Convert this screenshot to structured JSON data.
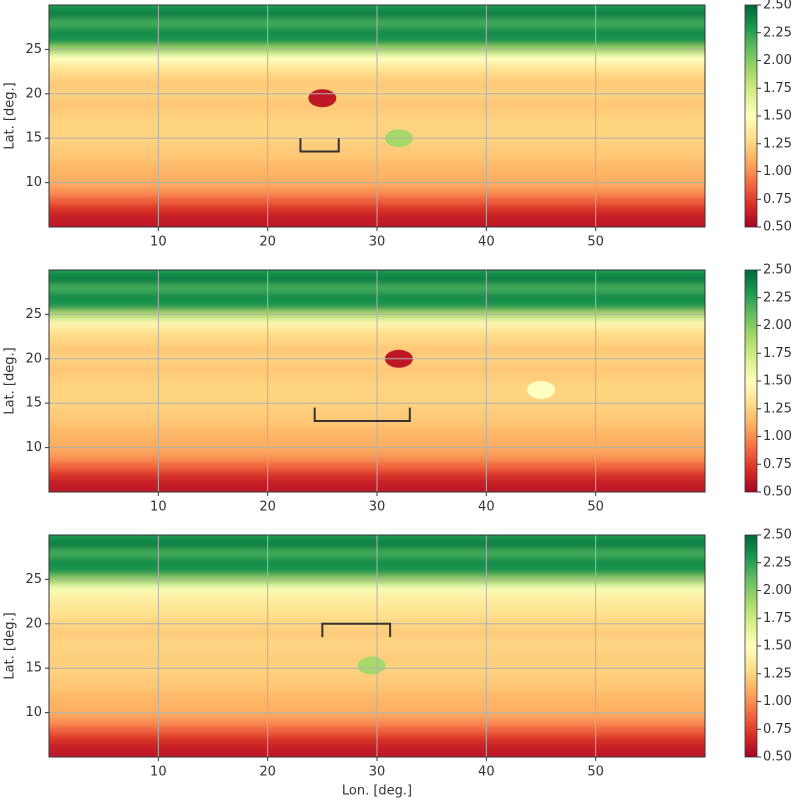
{
  "chart_data": [
    {
      "type": "heatmap",
      "ylabel": "Lat. [deg.]",
      "xlim": [
        0,
        60
      ],
      "ylim": [
        5,
        30
      ],
      "xticks": [
        10,
        20,
        30,
        40,
        50
      ],
      "yticks": [
        10,
        15,
        20,
        25
      ],
      "grid": true,
      "colormap": [
        "#a50026",
        "#d73027",
        "#f46d43",
        "#fdae61",
        "#fee08b",
        "#ffffbf",
        "#d9ef8b",
        "#a6d96a",
        "#66bd63",
        "#1a9850",
        "#006837"
      ],
      "clim": [
        0.5,
        2.5
      ],
      "cticks": [
        {
          "value": 0.5,
          "label": "0.50"
        },
        {
          "value": 0.75,
          "label": "0.75"
        },
        {
          "value": 1,
          "label": "1.00"
        },
        {
          "value": 1.25,
          "label": "1.25"
        },
        {
          "value": 1.5,
          "label": "1.50"
        },
        {
          "value": 1.75,
          "label": "1.75"
        },
        {
          "value": 2,
          "label": "2.00"
        },
        {
          "value": 2.25,
          "label": "2.25"
        },
        {
          "value": 2.5,
          "label": "2.50"
        }
      ],
      "lat": [
        5,
        6,
        7,
        8,
        9,
        10,
        11,
        12,
        13,
        14,
        15,
        16,
        17,
        18,
        19,
        20,
        21,
        22,
        23,
        24,
        25,
        26,
        27,
        28,
        29,
        30
      ],
      "values": [
        0.6,
        0.62,
        0.7,
        0.85,
        1.0,
        1.1,
        1.12,
        1.15,
        1.2,
        1.22,
        1.25,
        1.25,
        1.25,
        1.22,
        1.2,
        1.25,
        1.2,
        1.25,
        1.35,
        1.5,
        1.9,
        2.3,
        2.35,
        2.2,
        2.4,
        2.3
      ],
      "features": {
        "lon": [
          25,
          32
        ],
        "lat": [
          19.5,
          15
        ],
        "values": [
          0.6,
          1.9
        ]
      },
      "bracket": {
        "x": [
          23,
          26.5
        ],
        "y": [
          13.5,
          15
        ]
      }
    },
    {
      "type": "heatmap",
      "ylabel": "Lat. [deg.]",
      "xlim": [
        0,
        60
      ],
      "ylim": [
        5,
        30
      ],
      "xticks": [
        10,
        20,
        30,
        40,
        50
      ],
      "yticks": [
        10,
        15,
        20,
        25
      ],
      "grid": true,
      "colormap": [
        "#a50026",
        "#d73027",
        "#f46d43",
        "#fdae61",
        "#fee08b",
        "#ffffbf",
        "#d9ef8b",
        "#a6d96a",
        "#66bd63",
        "#1a9850",
        "#006837"
      ],
      "clim": [
        0.5,
        2.5
      ],
      "cticks": [
        {
          "value": 0.5,
          "label": "0.50"
        },
        {
          "value": 0.75,
          "label": "0.75"
        },
        {
          "value": 1,
          "label": "1.00"
        },
        {
          "value": 1.25,
          "label": "1.25"
        },
        {
          "value": 1.5,
          "label": "1.50"
        },
        {
          "value": 1.75,
          "label": "1.75"
        },
        {
          "value": 2,
          "label": "2.00"
        },
        {
          "value": 2.25,
          "label": "2.25"
        },
        {
          "value": 2.5,
          "label": "2.50"
        }
      ],
      "lat": [
        5,
        6,
        7,
        8,
        9,
        10,
        11,
        12,
        13,
        14,
        15,
        16,
        17,
        18,
        19,
        20,
        21,
        22,
        23,
        24,
        25,
        26,
        27,
        28,
        29,
        30
      ],
      "values": [
        0.6,
        0.62,
        0.72,
        0.88,
        1.02,
        1.1,
        1.12,
        1.15,
        1.2,
        1.22,
        1.25,
        1.25,
        1.25,
        1.22,
        1.2,
        1.25,
        1.2,
        1.25,
        1.3,
        1.45,
        1.85,
        2.3,
        2.35,
        2.2,
        2.4,
        2.3
      ],
      "features": {
        "lon": [
          32,
          45
        ],
        "lat": [
          20,
          16.5
        ],
        "values": [
          0.6,
          1.5
        ]
      },
      "bracket": {
        "x": [
          24.3,
          33
        ],
        "y": [
          13,
          14.5
        ]
      }
    },
    {
      "type": "heatmap",
      "ylabel": "Lat. [deg.]",
      "xlabel": "Lon. [deg.]",
      "xlim": [
        0,
        60
      ],
      "ylim": [
        5,
        30
      ],
      "xticks": [
        10,
        20,
        30,
        40,
        50
      ],
      "yticks": [
        10,
        15,
        20,
        25
      ],
      "grid": true,
      "colormap": [
        "#a50026",
        "#d73027",
        "#f46d43",
        "#fdae61",
        "#fee08b",
        "#ffffbf",
        "#d9ef8b",
        "#a6d96a",
        "#66bd63",
        "#1a9850",
        "#006837"
      ],
      "clim": [
        0.5,
        2.5
      ],
      "cticks": [
        {
          "value": 0.5,
          "label": "0.50"
        },
        {
          "value": 0.75,
          "label": "0.75"
        },
        {
          "value": 1,
          "label": "1.00"
        },
        {
          "value": 1.25,
          "label": "1.25"
        },
        {
          "value": 1.5,
          "label": "1.50"
        },
        {
          "value": 1.75,
          "label": "1.75"
        },
        {
          "value": 2,
          "label": "2.00"
        },
        {
          "value": 2.25,
          "label": "2.25"
        },
        {
          "value": 2.5,
          "label": "2.50"
        }
      ],
      "lat": [
        5,
        6,
        7,
        8,
        9,
        10,
        11,
        12,
        13,
        14,
        15,
        16,
        17,
        18,
        19,
        20,
        21,
        22,
        23,
        24,
        25,
        26,
        27,
        28,
        29,
        30
      ],
      "values": [
        0.6,
        0.62,
        0.7,
        0.85,
        1.0,
        1.1,
        1.12,
        1.15,
        1.2,
        1.22,
        1.25,
        1.22,
        1.25,
        1.25,
        1.22,
        1.25,
        1.3,
        1.35,
        1.4,
        1.55,
        1.95,
        2.3,
        2.35,
        2.2,
        2.4,
        2.3
      ],
      "features": {
        "lon": [
          29.5
        ],
        "lat": [
          15.3
        ],
        "values": [
          1.9
        ]
      },
      "bracket": {
        "x": [
          25,
          31.2
        ],
        "y": [
          20,
          18.5
        ]
      }
    }
  ]
}
